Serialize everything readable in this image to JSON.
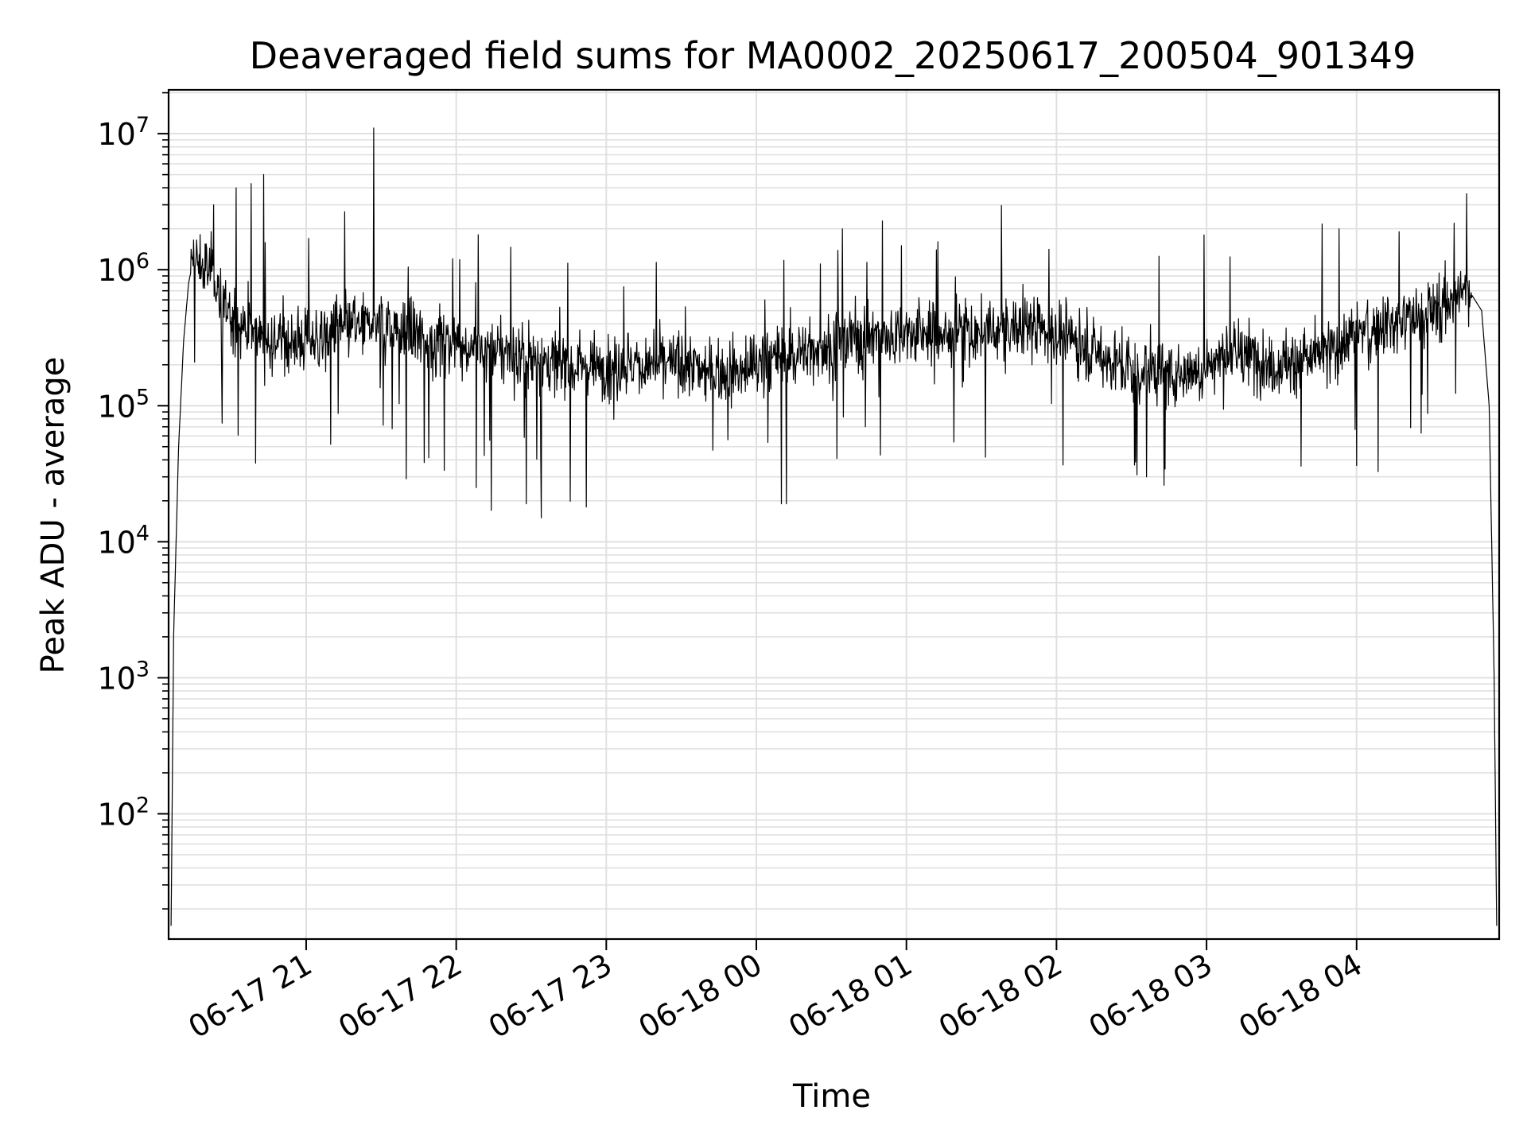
{
  "chart_data": {
    "type": "line",
    "title": "Deaveraged field sums for MA0002_20250617_200504_901349",
    "xlabel": "Time",
    "ylabel": "Peak ADU - average",
    "x_scale": "time",
    "y_scale": "log",
    "xlim": [
      "2025-06-17 20:05",
      "2025-06-18 04:57"
    ],
    "ylim": [
      12,
      21000000
    ],
    "x_ticks": [
      "06-17 21",
      "06-17 22",
      "06-17 23",
      "06-18 00",
      "06-18 01",
      "06-18 02",
      "06-18 03",
      "06-18 04"
    ],
    "y_ticks": [
      100,
      1000,
      10000,
      100000,
      1000000,
      10000000
    ],
    "y_tick_labels": [
      {
        "base": "10",
        "exp": "2"
      },
      {
        "base": "10",
        "exp": "3"
      },
      {
        "base": "10",
        "exp": "4"
      },
      {
        "base": "10",
        "exp": "5"
      },
      {
        "base": "10",
        "exp": "6"
      },
      {
        "base": "10",
        "exp": "7"
      }
    ],
    "grid": true,
    "line_color": "#000000",
    "grid_color": "#e0e0e0",
    "series": [
      {
        "x": [
          "2025-06-17 20:06",
          "2025-06-17 20:07",
          "2025-06-17 20:09",
          "2025-06-17 20:11",
          "2025-06-17 20:13",
          "2025-06-17 20:15",
          "2025-06-17 20:19",
          "2025-06-17 20:23",
          "2025-06-17 20:26",
          "2025-06-17 20:30",
          "2025-06-17 20:35",
          "2025-06-17 20:40",
          "2025-06-17 20:45",
          "2025-06-17 20:50",
          "2025-06-17 20:55",
          "2025-06-17 21:00",
          "2025-06-17 21:10",
          "2025-06-17 21:20",
          "2025-06-17 21:30",
          "2025-06-17 21:40",
          "2025-06-17 21:50",
          "2025-06-17 22:00",
          "2025-06-17 22:10",
          "2025-06-17 22:20",
          "2025-06-17 22:30",
          "2025-06-17 22:40",
          "2025-06-17 22:50",
          "2025-06-17 23:00",
          "2025-06-17 23:10",
          "2025-06-17 23:20",
          "2025-06-17 23:30",
          "2025-06-17 23:40",
          "2025-06-17 23:50",
          "2025-06-18 00:00",
          "2025-06-18 00:10",
          "2025-06-18 00:20",
          "2025-06-18 00:30",
          "2025-06-18 00:40",
          "2025-06-18 00:50",
          "2025-06-18 01:00",
          "2025-06-18 01:10",
          "2025-06-18 01:20",
          "2025-06-18 01:30",
          "2025-06-18 01:40",
          "2025-06-18 01:50",
          "2025-06-18 02:00",
          "2025-06-18 02:10",
          "2025-06-18 02:20",
          "2025-06-18 02:30",
          "2025-06-18 02:40",
          "2025-06-18 02:50",
          "2025-06-18 03:00",
          "2025-06-18 03:10",
          "2025-06-18 03:20",
          "2025-06-18 03:30",
          "2025-06-18 03:40",
          "2025-06-18 03:50",
          "2025-06-18 04:00",
          "2025-06-18 04:10",
          "2025-06-18 04:20",
          "2025-06-18 04:30",
          "2025-06-18 04:40",
          "2025-06-18 04:45",
          "2025-06-18 04:50",
          "2025-06-18 04:53",
          "2025-06-18 04:55",
          "2025-06-18 04:56"
        ],
        "y": [
          15,
          2000,
          50000,
          300000,
          800000,
          1200000,
          1000000,
          1000000,
          600000,
          400000,
          400000,
          350000,
          320000,
          300000,
          300000,
          300000,
          350000,
          380000,
          400000,
          330000,
          300000,
          280000,
          260000,
          250000,
          220000,
          200000,
          200000,
          200000,
          200000,
          200000,
          200000,
          180000,
          180000,
          200000,
          230000,
          250000,
          280000,
          320000,
          330000,
          340000,
          330000,
          340000,
          330000,
          360000,
          400000,
          340000,
          280000,
          220000,
          180000,
          180000,
          170000,
          200000,
          240000,
          220000,
          200000,
          220000,
          250000,
          350000,
          400000,
          420000,
          500000,
          650000,
          700000,
          500000,
          100000,
          1000,
          15
        ]
      }
    ],
    "spikes_up": [
      {
        "x": "2025-06-17 20:23",
        "y": 3000000
      },
      {
        "x": "2025-06-17 20:32",
        "y": 4000000
      },
      {
        "x": "2025-06-17 20:38",
        "y": 4300000
      },
      {
        "x": "2025-06-17 20:43",
        "y": 5000000
      },
      {
        "x": "2025-06-17 21:01",
        "y": 1700000
      },
      {
        "x": "2025-06-17 21:27",
        "y": 11000000
      },
      {
        "x": "2025-06-18 01:12",
        "y": 1400000
      },
      {
        "x": "2025-06-18 02:59",
        "y": 1800000
      },
      {
        "x": "2025-06-18 03:53",
        "y": 2000000
      },
      {
        "x": "2025-06-18 04:17",
        "y": 1900000
      },
      {
        "x": "2025-06-18 04:39",
        "y": 2200000
      }
    ],
    "spikes_down": [
      {
        "x": "2025-06-17 21:40",
        "y": 29000
      },
      {
        "x": "2025-06-17 22:08",
        "y": 25000
      },
      {
        "x": "2025-06-17 22:14",
        "y": 17000
      },
      {
        "x": "2025-06-17 22:28",
        "y": 19000
      },
      {
        "x": "2025-06-17 22:34",
        "y": 15000
      },
      {
        "x": "2025-06-17 22:52",
        "y": 18000
      },
      {
        "x": "2025-06-18 00:10",
        "y": 19000
      },
      {
        "x": "2025-06-18 00:12",
        "y": 19000
      },
      {
        "x": "2025-06-18 02:36",
        "y": 30000
      },
      {
        "x": "2025-06-18 02:43",
        "y": 26000
      }
    ]
  }
}
